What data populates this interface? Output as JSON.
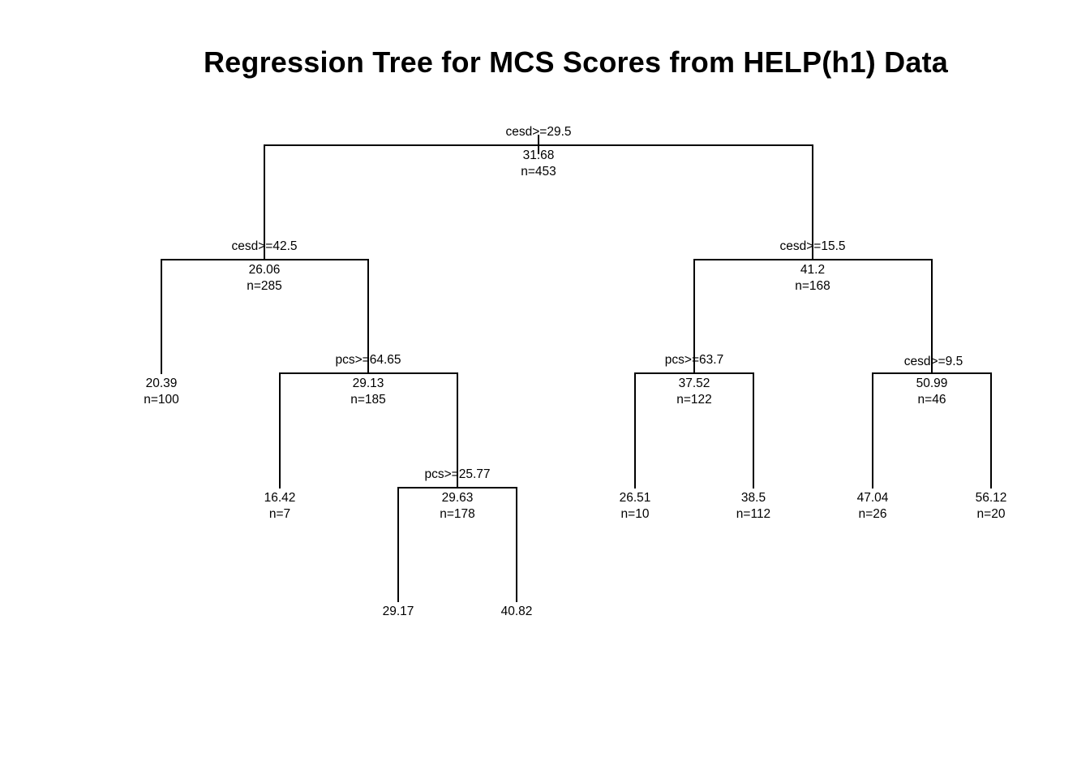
{
  "title": "Regression Tree for MCS Scores from HELP(h1) Data",
  "tree": {
    "nodes": [
      {
        "id": "root",
        "split": "cesd>=29.5",
        "mean": "31.68",
        "n": "n=453"
      },
      {
        "id": "n_l",
        "split": "cesd>=42.5",
        "mean": "26.06",
        "n": "n=285"
      },
      {
        "id": "n_r",
        "split": "cesd>=15.5",
        "mean": "41.2",
        "n": "n=168"
      },
      {
        "id": "n_ll",
        "split": "",
        "mean": "20.39",
        "n": "n=100"
      },
      {
        "id": "n_lr",
        "split": "pcs>=64.65",
        "mean": "29.13",
        "n": "n=185"
      },
      {
        "id": "n_rl",
        "split": "pcs>=63.7",
        "mean": "37.52",
        "n": "n=122"
      },
      {
        "id": "n_rr",
        "split": "cesd>=9.5",
        "mean": "50.99",
        "n": "n=46"
      },
      {
        "id": "n_lrl",
        "split": "",
        "mean": "16.42",
        "n": "n=7"
      },
      {
        "id": "n_lrr",
        "split": "pcs>=25.77",
        "mean": "29.63",
        "n": "n=178"
      },
      {
        "id": "n_rll",
        "split": "",
        "mean": "26.51",
        "n": "n=10"
      },
      {
        "id": "n_rlr",
        "split": "",
        "mean": "38.5",
        "n": "n=112"
      },
      {
        "id": "n_rrl",
        "split": "",
        "mean": "47.04",
        "n": "n=26"
      },
      {
        "id": "n_rrr",
        "split": "",
        "mean": "56.12",
        "n": "n=20"
      },
      {
        "id": "n_lrrl",
        "split": "",
        "mean": "29.17",
        "n": ""
      },
      {
        "id": "n_lrrr",
        "split": "",
        "mean": "40.82",
        "n": ""
      }
    ],
    "edges": [
      {
        "parent": "root",
        "left": "n_l",
        "right": "n_r"
      },
      {
        "parent": "n_l",
        "left": "n_ll",
        "right": "n_lr"
      },
      {
        "parent": "n_r",
        "left": "n_rl",
        "right": "n_rr"
      },
      {
        "parent": "n_lr",
        "left": "n_lrl",
        "right": "n_lrr"
      },
      {
        "parent": "n_rl",
        "left": "n_rll",
        "right": "n_rlr"
      },
      {
        "parent": "n_rr",
        "left": "n_rrl",
        "right": "n_rrr"
      },
      {
        "parent": "n_lrr",
        "left": "n_lrrl",
        "right": "n_lrrr"
      }
    ]
  }
}
